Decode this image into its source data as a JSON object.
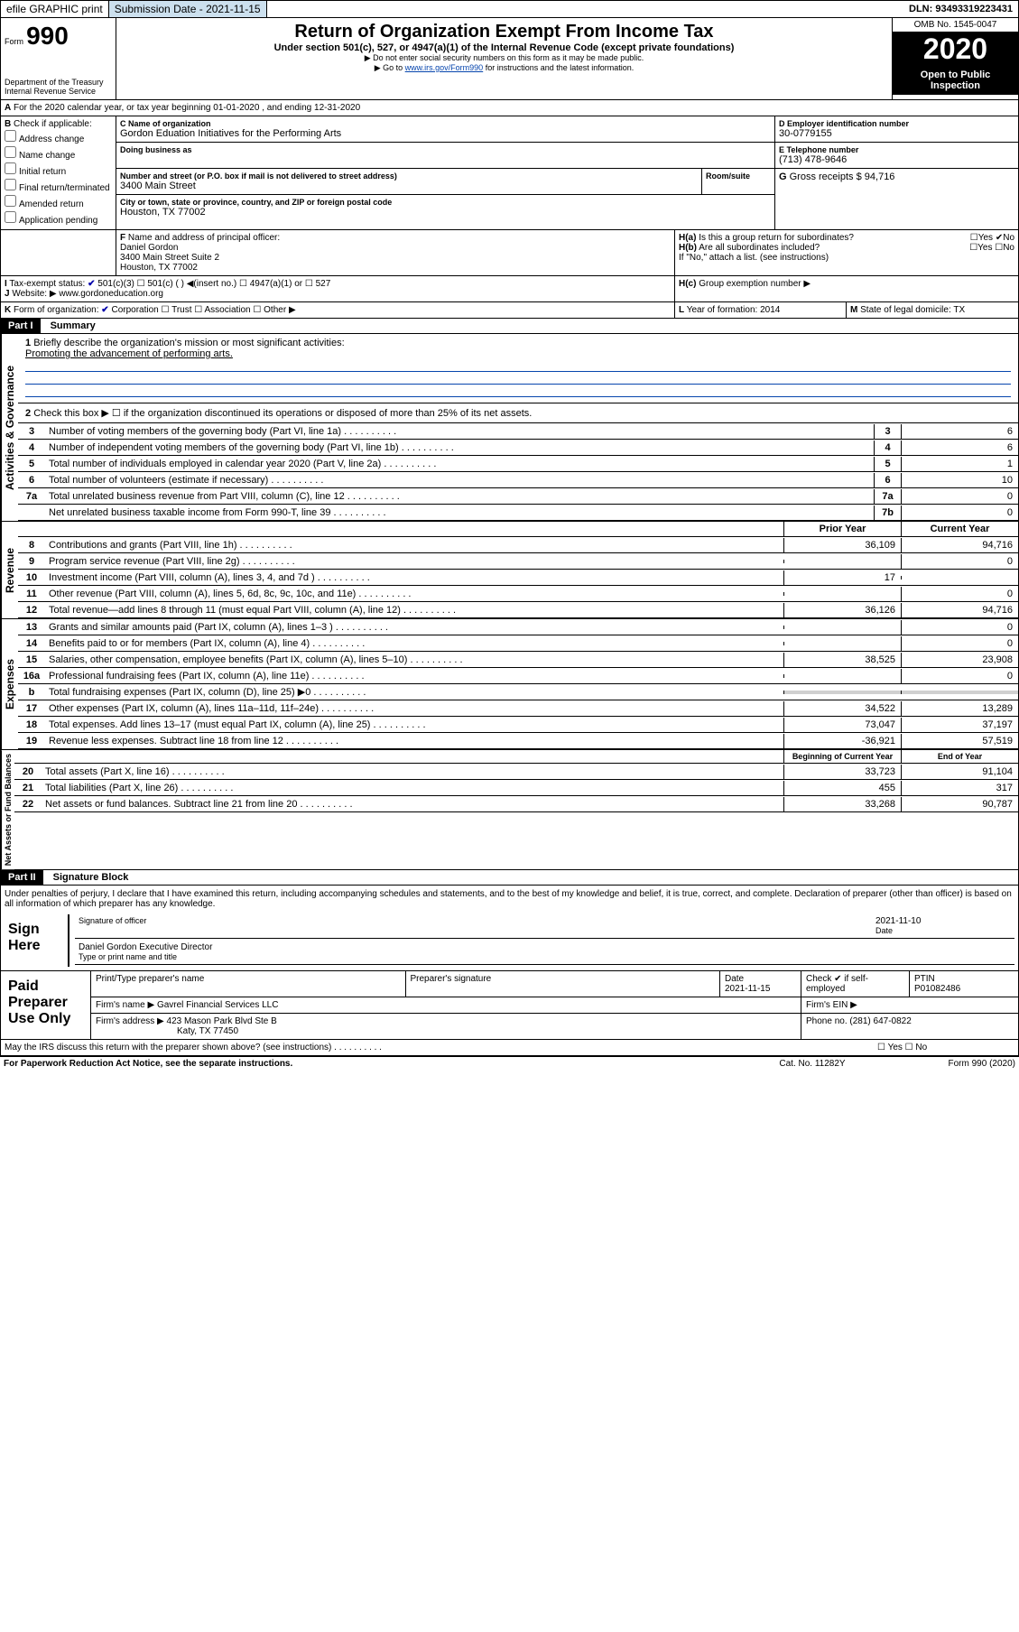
{
  "topbar": {
    "efile": "efile GRAPHIC print",
    "submission_label": "Submission Date - 2021-11-15",
    "dln": "DLN: 93493319223431"
  },
  "header": {
    "form_prefix": "Form",
    "form_number": "990",
    "dept1": "Department of the Treasury",
    "dept2": "Internal Revenue Service",
    "title": "Return of Organization Exempt From Income Tax",
    "subtitle": "Under section 501(c), 527, or 4947(a)(1) of the Internal Revenue Code (except private foundations)",
    "note1": "Do not enter social security numbers on this form as it may be made public.",
    "note2_pre": "Go to ",
    "note2_link": "www.irs.gov/Form990",
    "note2_post": " for instructions and the latest information.",
    "omb": "OMB No. 1545-0047",
    "year": "2020",
    "open_public": "Open to Public Inspection"
  },
  "period": {
    "line": "For the 2020 calendar year, or tax year beginning 01-01-2020   , and ending 12-31-2020"
  },
  "boxB": {
    "label": "Check if applicable:",
    "opts": [
      "Address change",
      "Name change",
      "Initial return",
      "Final return/terminated",
      "Amended return",
      "Application pending"
    ]
  },
  "boxC": {
    "name_label": "Name of organization",
    "name": "Gordon Eduation Initiatives for the Performing Arts",
    "dba_label": "Doing business as",
    "addr_label": "Number and street (or P.O. box if mail is not delivered to street address)",
    "addr": "3400 Main Street",
    "room_label": "Room/suite",
    "city_label": "City or town, state or province, country, and ZIP or foreign postal code",
    "city": "Houston, TX  77002"
  },
  "boxD": {
    "label": "Employer identification number",
    "val": "30-0779155"
  },
  "boxE": {
    "label": "Telephone number",
    "val": "(713) 478-9646"
  },
  "boxG": {
    "label": "Gross receipts $",
    "val": "94,716"
  },
  "boxF": {
    "label": "Name and address of principal officer:",
    "name": "Daniel Gordon",
    "addr": "3400 Main Street Suite 2",
    "city": "Houston, TX  77002"
  },
  "boxH": {
    "a": "Is this a group return for subordinates?",
    "b": "Are all subordinates included?",
    "note": "If \"No,\" attach a list. (see instructions)",
    "c": "Group exemption number ▶"
  },
  "boxI": {
    "label": "Tax-exempt status:",
    "c1": "501(c)(3)",
    "c2": "501(c) (  ) ◀(insert no.)",
    "c3": "4947(a)(1) or",
    "c4": "527"
  },
  "boxJ": {
    "label": "Website: ▶",
    "val": "www.gordoneducation.org"
  },
  "boxK": {
    "label": "Form of organization:",
    "o1": "Corporation",
    "o2": "Trust",
    "o3": "Association",
    "o4": "Other ▶"
  },
  "boxL": {
    "label": "Year of formation:",
    "val": "2014"
  },
  "boxM": {
    "label": "State of legal domicile:",
    "val": "TX"
  },
  "part1": {
    "title": "Part I",
    "sub": "Summary",
    "line1_label": "Briefly describe the organization's mission or most significant activities:",
    "line1_val": "Promoting the advancement of performing arts.",
    "line2": "Check this box ▶ ☐  if the organization discontinued its operations or disposed of more than 25% of its net assets.",
    "lines_ag": [
      {
        "n": "3",
        "t": "Number of voting members of the governing body (Part VI, line 1a)",
        "box": "3",
        "v": "6"
      },
      {
        "n": "4",
        "t": "Number of independent voting members of the governing body (Part VI, line 1b)",
        "box": "4",
        "v": "6"
      },
      {
        "n": "5",
        "t": "Total number of individuals employed in calendar year 2020 (Part V, line 2a)",
        "box": "5",
        "v": "1"
      },
      {
        "n": "6",
        "t": "Total number of volunteers (estimate if necessary)",
        "box": "6",
        "v": "10"
      },
      {
        "n": "7a",
        "t": "Total unrelated business revenue from Part VIII, column (C), line 12",
        "box": "7a",
        "v": "0"
      },
      {
        "n": "",
        "t": "Net unrelated business taxable income from Form 990-T, line 39",
        "box": "7b",
        "v": "0"
      }
    ],
    "col_prior": "Prior Year",
    "col_current": "Current Year",
    "col_beg": "Beginning of Current Year",
    "col_end": "End of Year",
    "rev": [
      {
        "n": "8",
        "t": "Contributions and grants (Part VIII, line 1h)",
        "p": "36,109",
        "c": "94,716"
      },
      {
        "n": "9",
        "t": "Program service revenue (Part VIII, line 2g)",
        "p": "",
        "c": "0"
      },
      {
        "n": "10",
        "t": "Investment income (Part VIII, column (A), lines 3, 4, and 7d )",
        "p": "17",
        "c": ""
      },
      {
        "n": "11",
        "t": "Other revenue (Part VIII, column (A), lines 5, 6d, 8c, 9c, 10c, and 11e)",
        "p": "",
        "c": "0"
      },
      {
        "n": "12",
        "t": "Total revenue—add lines 8 through 11 (must equal Part VIII, column (A), line 12)",
        "p": "36,126",
        "c": "94,716"
      }
    ],
    "exp": [
      {
        "n": "13",
        "t": "Grants and similar amounts paid (Part IX, column (A), lines 1–3 )",
        "p": "",
        "c": "0"
      },
      {
        "n": "14",
        "t": "Benefits paid to or for members (Part IX, column (A), line 4)",
        "p": "",
        "c": "0"
      },
      {
        "n": "15",
        "t": "Salaries, other compensation, employee benefits (Part IX, column (A), lines 5–10)",
        "p": "38,525",
        "c": "23,908"
      },
      {
        "n": "16a",
        "t": "Professional fundraising fees (Part IX, column (A), line 11e)",
        "p": "",
        "c": "0"
      },
      {
        "n": "b",
        "t": "Total fundraising expenses (Part IX, column (D), line 25) ▶0",
        "p": "GRAY",
        "c": "GRAY"
      },
      {
        "n": "17",
        "t": "Other expenses (Part IX, column (A), lines 11a–11d, 11f–24e)",
        "p": "34,522",
        "c": "13,289"
      },
      {
        "n": "18",
        "t": "Total expenses. Add lines 13–17 (must equal Part IX, column (A), line 25)",
        "p": "73,047",
        "c": "37,197"
      },
      {
        "n": "19",
        "t": "Revenue less expenses. Subtract line 18 from line 12",
        "p": "-36,921",
        "c": "57,519"
      }
    ],
    "net": [
      {
        "n": "20",
        "t": "Total assets (Part X, line 16)",
        "p": "33,723",
        "c": "91,104"
      },
      {
        "n": "21",
        "t": "Total liabilities (Part X, line 26)",
        "p": "455",
        "c": "317"
      },
      {
        "n": "22",
        "t": "Net assets or fund balances. Subtract line 21 from line 20",
        "p": "33,268",
        "c": "90,787"
      }
    ]
  },
  "side_labels": {
    "ag": "Activities & Governance",
    "rev": "Revenue",
    "exp": "Expenses",
    "net": "Net Assets or Fund Balances"
  },
  "part2": {
    "title": "Part II",
    "sub": "Signature Block",
    "declaration": "Under penalties of perjury, I declare that I have examined this return, including accompanying schedules and statements, and to the best of my knowledge and belief, it is true, correct, and complete. Declaration of preparer (other than officer) is based on all information of which preparer has any knowledge.",
    "sign_here": "Sign Here",
    "sig_officer": "Signature of officer",
    "sig_date": "2021-11-10",
    "sig_date_label": "Date",
    "officer_name": "Daniel Gordon  Executive Director",
    "type_label": "Type or print name and title",
    "paid_prep": "Paid Preparer Use Only",
    "prep_col1": "Print/Type preparer's name",
    "prep_col2": "Preparer's signature",
    "prep_col3": "Date",
    "prep_date": "2021-11-15",
    "prep_check": "Check ✔ if self-employed",
    "ptin_label": "PTIN",
    "ptin": "P01082486",
    "firm_name_label": "Firm's name   ▶",
    "firm_name": "Gavrel Financial Services LLC",
    "firm_ein_label": "Firm's EIN ▶",
    "firm_addr_label": "Firm's address ▶",
    "firm_addr": "423 Mason Park Blvd Ste B",
    "firm_city": "Katy, TX  77450",
    "phone_label": "Phone no.",
    "phone": "(281) 647-0822",
    "discuss": "May the IRS discuss this return with the preparer shown above? (see instructions)",
    "yes": "Yes",
    "no": "No"
  },
  "footer": {
    "left": "For Paperwork Reduction Act Notice, see the separate instructions.",
    "mid": "Cat. No. 11282Y",
    "right": "Form 990 (2020)"
  }
}
